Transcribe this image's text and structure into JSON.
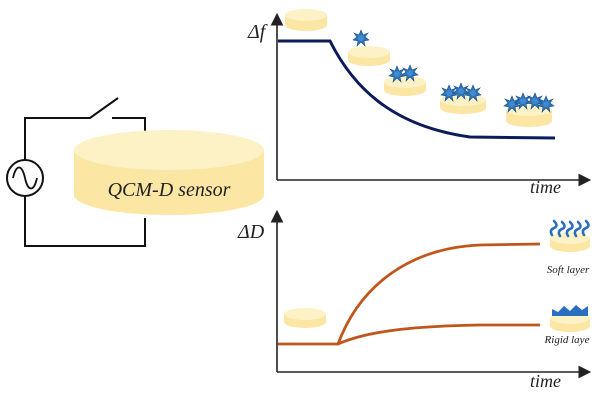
{
  "sensor": {
    "label": "QCM-D sensor"
  },
  "top_plot": {
    "y_label": "Δf",
    "x_label": "time"
  },
  "bottom_plot": {
    "y_label": "ΔD",
    "x_label": "time"
  },
  "legend": {
    "soft_label": "Soft layer",
    "rigid_label": "Rigid laye"
  },
  "colors": {
    "disk_fill": "#fbe6a4",
    "disk_top": "#fdf1c6",
    "frequency_curve": "#0d1b5a",
    "dissipation_curve": "#c0561b",
    "particle": "#2e74b8",
    "soft_chain": "#2a6fbf",
    "rigid_chain": "#2a6fbf"
  }
}
